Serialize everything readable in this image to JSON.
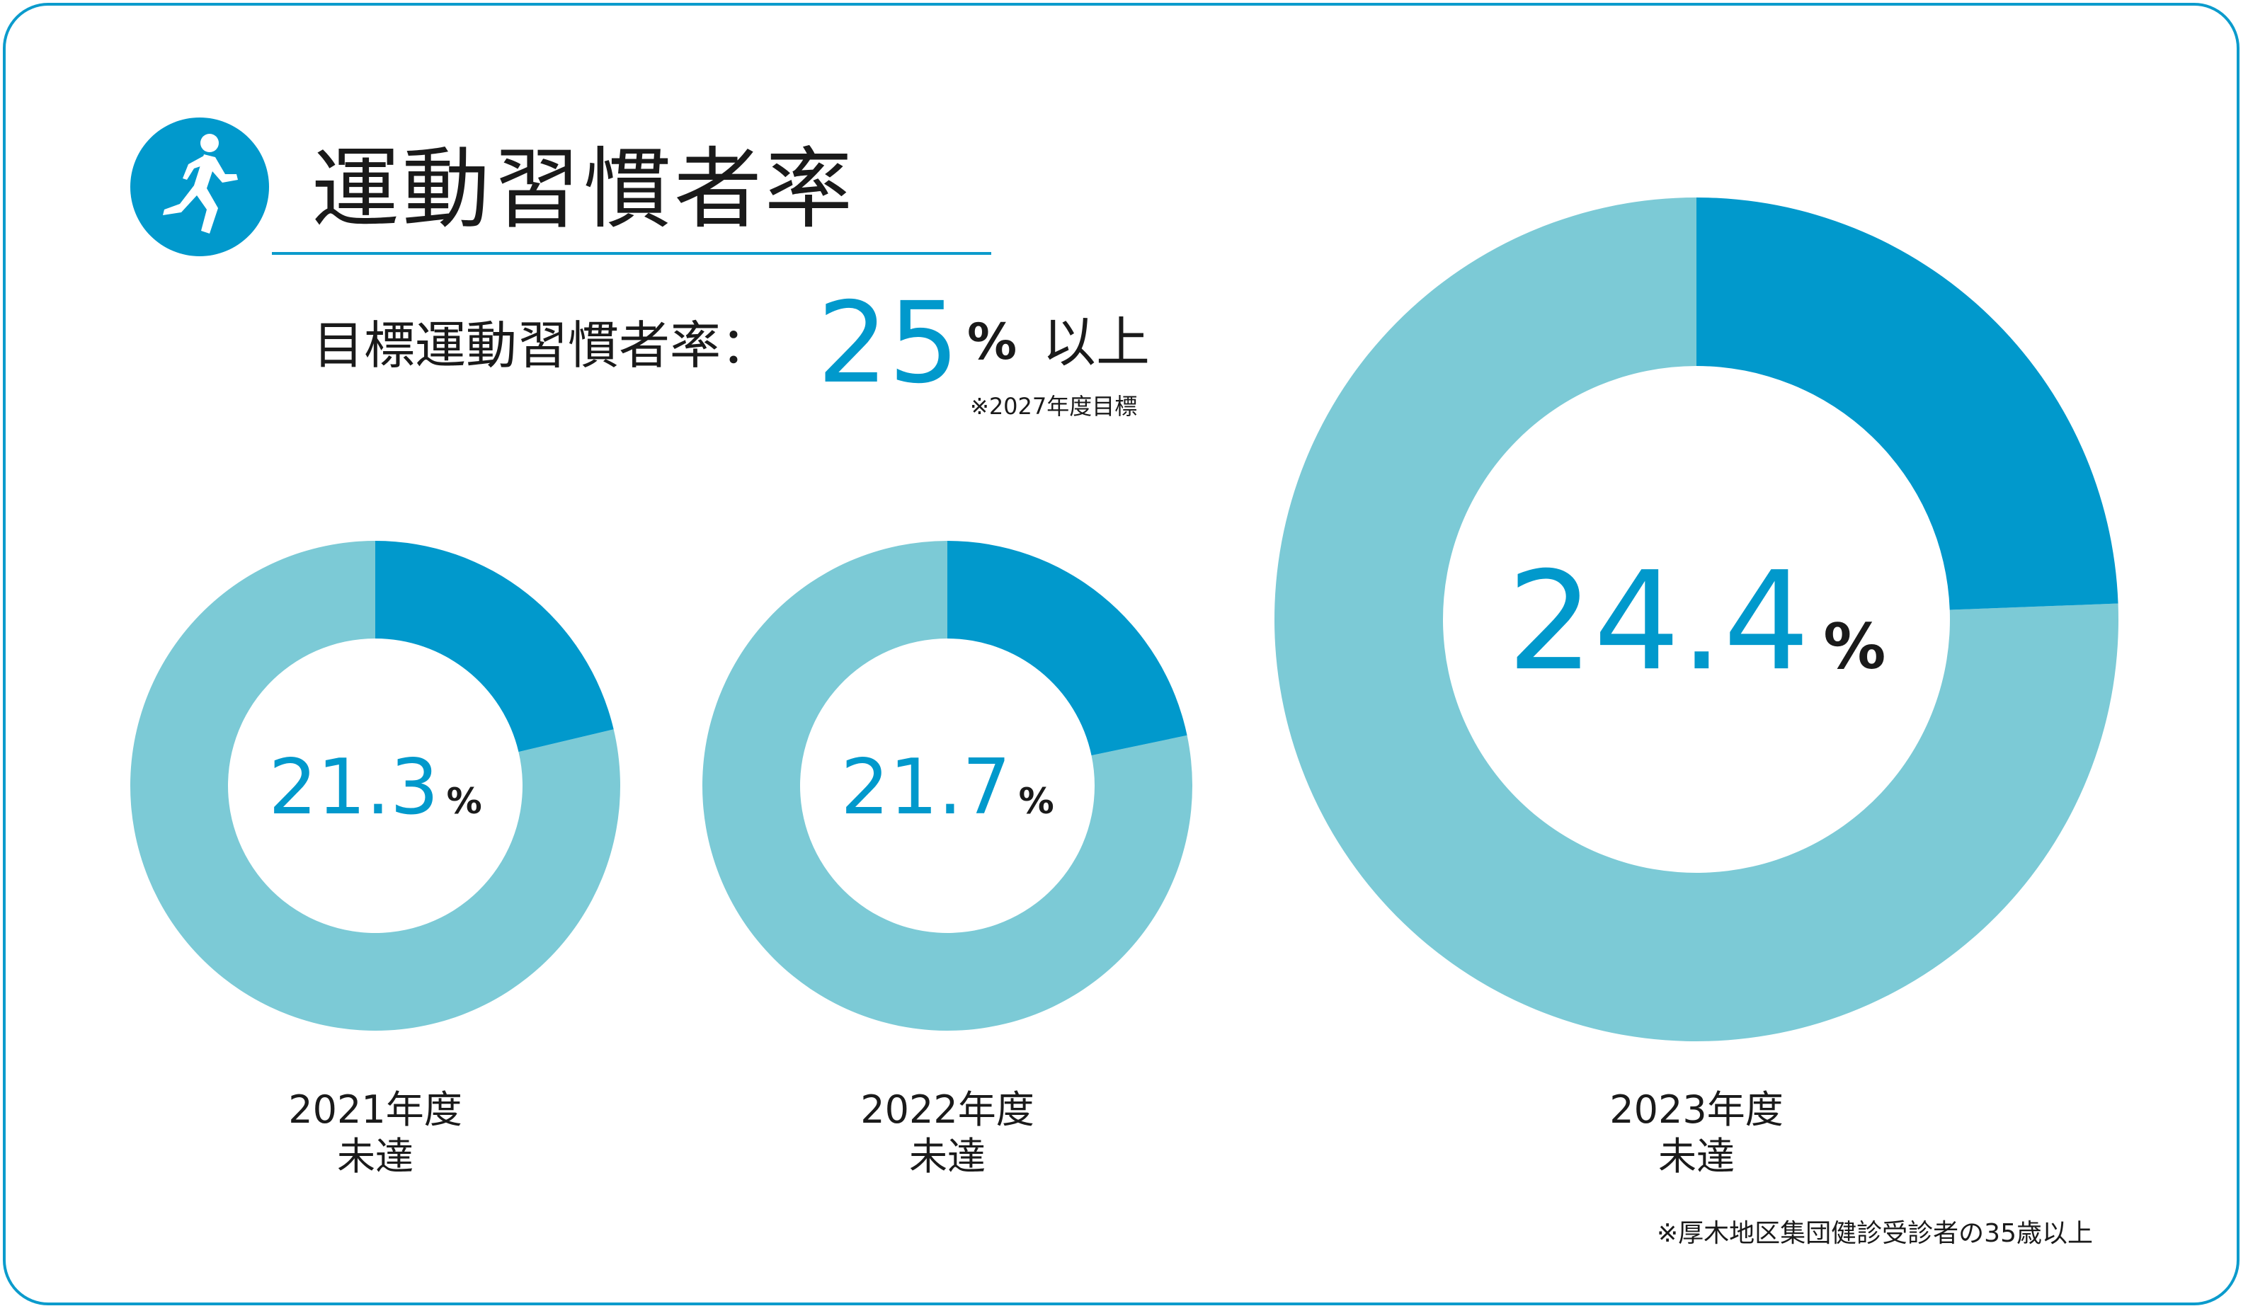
{
  "title": "運動習慣者率",
  "target": {
    "label": "目標運動習慣者率：",
    "value": "25",
    "unit": "%",
    "suffix": "以上",
    "note": "※2027年度目標"
  },
  "colors": {
    "accent": "#0199cc",
    "remainder": "#7ccad6",
    "border": "#0b9bcc"
  },
  "icon": "runner-icon",
  "chart_data": [
    {
      "type": "pie",
      "category": "2021年度",
      "status": "未達",
      "value": 21.3,
      "value_label": "21.3",
      "unit": "%"
    },
    {
      "type": "pie",
      "category": "2022年度",
      "status": "未達",
      "value": 21.7,
      "value_label": "21.7",
      "unit": "%"
    },
    {
      "type": "pie",
      "category": "2023年度",
      "status": "未達",
      "value": 24.4,
      "value_label": "24.4",
      "unit": "%"
    }
  ],
  "footnote": "※厚木地区集団健診受診者の35歳以上"
}
